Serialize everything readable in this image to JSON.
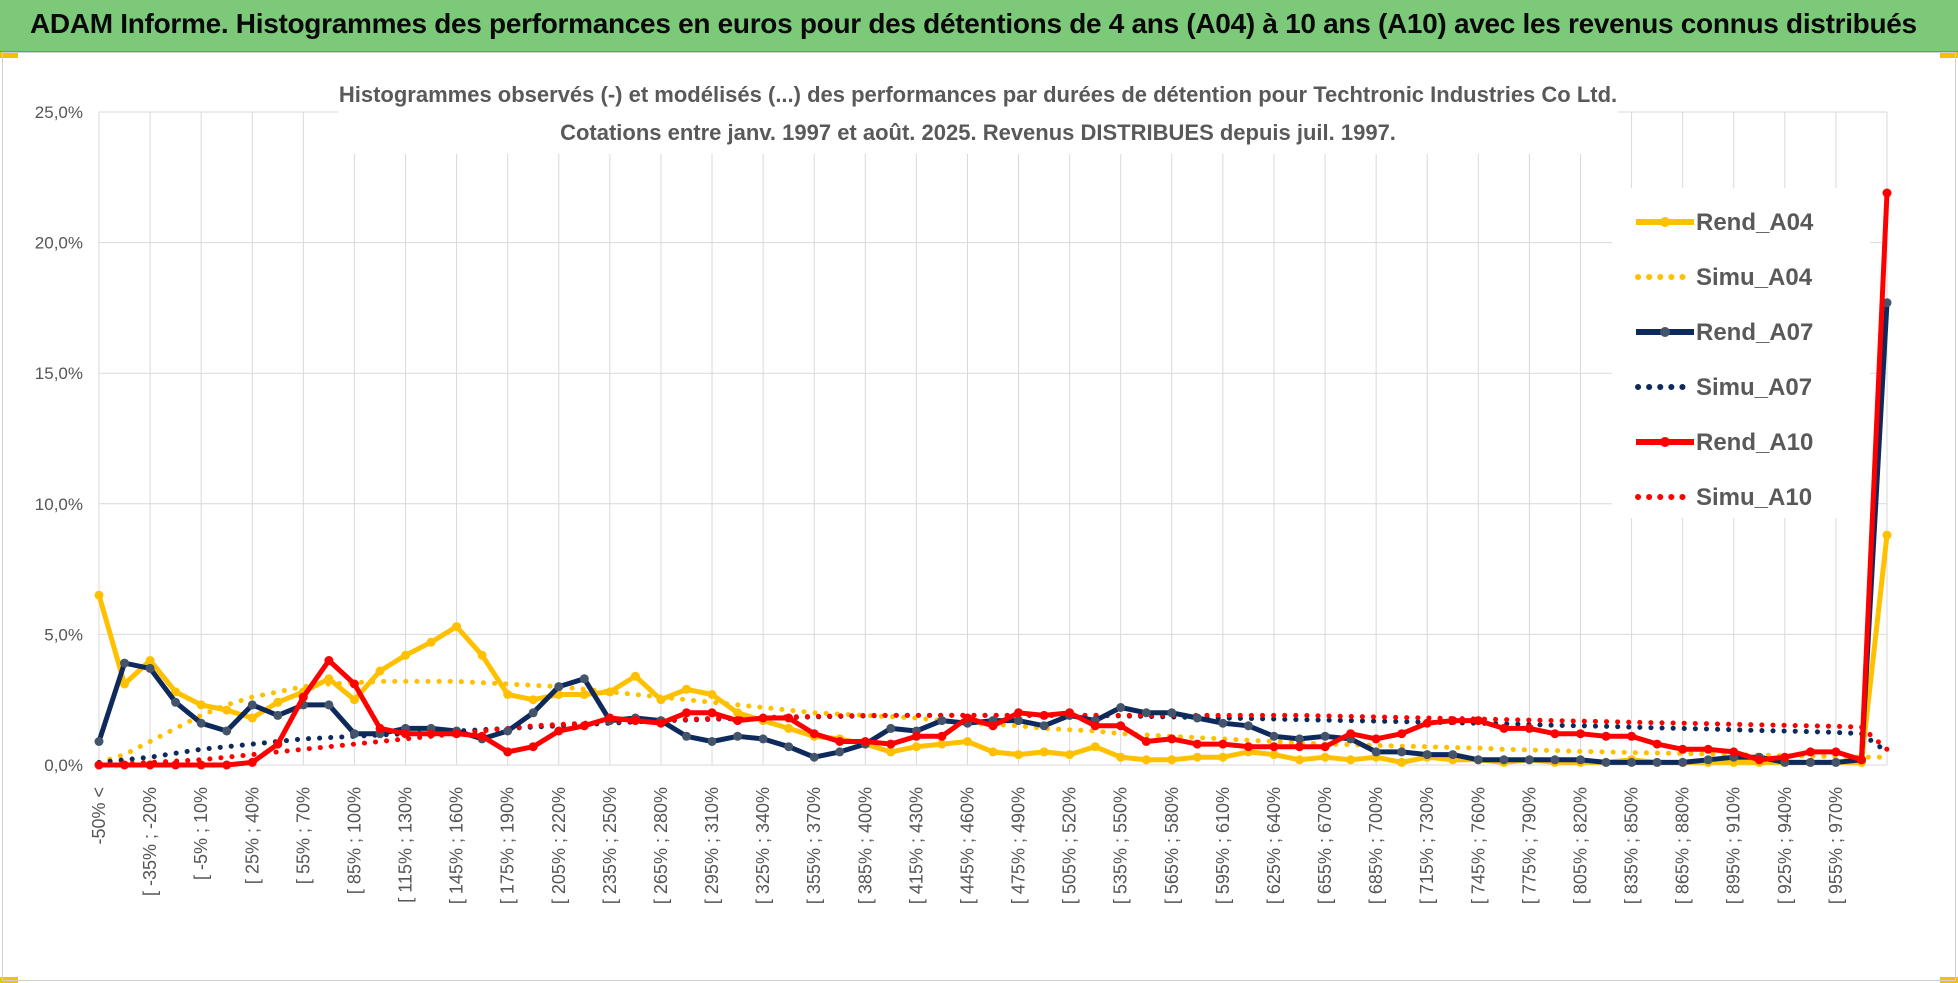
{
  "header": {
    "title": "ADAM Informe. Histogrammes des performances en euros pour des détentions de 4 ans (A04) à 10 ans (A10) avec les revenus connus distribués",
    "banner_color": "#7dc97a"
  },
  "chart_data": {
    "type": "line",
    "title": "Histogrammes observés (-) et modélisés (...) des performances par durées de détention pour Techtronic Industries Co Ltd.",
    "subtitle": "Cotations entre janv. 1997 et août. 2025. Revenus DISTRIBUES depuis juil. 1997.",
    "xlabel": "",
    "ylabel": "",
    "ylim": [
      0,
      25
    ],
    "y_ticks": [
      "0,0%",
      "5,0%",
      "10,0%",
      "15,0%",
      "20,0%",
      "25,0%"
    ],
    "grid": true,
    "legend_position": "right",
    "x_tick_labels": [
      "-50% <",
      "[ -35% ; -20%",
      "[ -5% ; 10%",
      "[ 25% ; 40%",
      "[ 55% ; 70%",
      "[ 85% ; 100%",
      "[ 115% ; 130%",
      "[ 145% ; 160%",
      "[ 175% ; 190%",
      "[ 205% ; 220%",
      "[ 235% ; 250%",
      "[ 265% ; 280%",
      "[ 295% ; 310%",
      "[ 325% ; 340%",
      "[ 355% ; 370%",
      "[ 385% ; 400%",
      "[ 415% ; 430%",
      "[ 445% ; 460%",
      "[ 475% ; 490%",
      "[ 505% ; 520%",
      "[ 535% ; 550%",
      "[ 565% ; 580%",
      "[ 595% ; 610%",
      "[ 625% ; 640%",
      "[ 655% ; 670%",
      "[ 685% ; 700%",
      "[ 715% ; 730%",
      "[ 745% ; 760%",
      "[ 775% ; 790%",
      "[ 805% ; 820%",
      "[ 835% ; 850%",
      "[ 865% ; 880%",
      "[ 895% ; 910%",
      "[ 925% ; 940%",
      "[ 955% ; 970%"
    ],
    "num_points": 71,
    "series": [
      {
        "name": "Rend_A04",
        "style": "solid",
        "color": "#ffc000",
        "values": [
          6.5,
          3.1,
          4.0,
          2.8,
          2.3,
          2.1,
          1.8,
          2.4,
          2.8,
          3.3,
          2.5,
          3.6,
          4.2,
          4.7,
          5.3,
          4.2,
          2.7,
          2.5,
          2.7,
          2.7,
          2.8,
          3.4,
          2.5,
          2.9,
          2.7,
          2.0,
          1.7,
          1.4,
          1.1,
          1.0,
          0.8,
          0.5,
          0.7,
          0.8,
          0.9,
          0.5,
          0.4,
          0.5,
          0.4,
          0.7,
          0.3,
          0.2,
          0.2,
          0.3,
          0.3,
          0.5,
          0.4,
          0.2,
          0.3,
          0.2,
          0.3,
          0.1,
          0.3,
          0.2,
          0.2,
          0.1,
          0.2,
          0.1,
          0.1,
          0.1,
          0.2,
          0.1,
          0.1,
          0.1,
          0.1,
          0.1,
          0.1,
          0.1,
          0.1,
          0.1,
          8.8
        ]
      },
      {
        "name": "Simu_A04",
        "style": "dotted",
        "color": "#ffc000",
        "values": [
          0.1,
          0.4,
          0.9,
          1.4,
          1.9,
          2.3,
          2.6,
          2.8,
          3.0,
          3.1,
          3.15,
          3.2,
          3.2,
          3.2,
          3.2,
          3.15,
          3.1,
          3.05,
          3.0,
          2.9,
          2.8,
          2.7,
          2.6,
          2.5,
          2.4,
          2.3,
          2.2,
          2.1,
          2.0,
          1.95,
          1.9,
          1.85,
          1.8,
          1.7,
          1.6,
          1.55,
          1.5,
          1.4,
          1.35,
          1.3,
          1.2,
          1.15,
          1.1,
          1.05,
          1.0,
          0.95,
          0.9,
          0.85,
          0.8,
          0.78,
          0.75,
          0.72,
          0.7,
          0.67,
          0.65,
          0.6,
          0.58,
          0.55,
          0.52,
          0.5,
          0.48,
          0.46,
          0.44,
          0.42,
          0.4,
          0.38,
          0.36,
          0.34,
          0.32,
          0.3,
          0.3
        ]
      },
      {
        "name": "Rend_A07",
        "style": "solid",
        "color": "#0e2a5c",
        "values": [
          0.9,
          3.9,
          3.7,
          2.4,
          1.6,
          1.3,
          2.3,
          1.9,
          2.3,
          2.3,
          1.2,
          1.2,
          1.4,
          1.4,
          1.3,
          1.0,
          1.3,
          2.0,
          3.0,
          3.3,
          1.7,
          1.8,
          1.7,
          1.1,
          0.9,
          1.1,
          1.0,
          0.7,
          0.3,
          0.5,
          0.8,
          1.4,
          1.3,
          1.7,
          1.6,
          1.7,
          1.7,
          1.5,
          1.9,
          1.7,
          2.2,
          2.0,
          2.0,
          1.8,
          1.6,
          1.5,
          1.1,
          1.0,
          1.1,
          1.0,
          0.5,
          0.5,
          0.4,
          0.4,
          0.2,
          0.2,
          0.2,
          0.2,
          0.2,
          0.1,
          0.1,
          0.1,
          0.1,
          0.2,
          0.3,
          0.3,
          0.1,
          0.1,
          0.1,
          0.2,
          17.7
        ]
      },
      {
        "name": "Simu_A07",
        "style": "dotted",
        "color": "#0e2a5c",
        "values": [
          0.1,
          0.2,
          0.3,
          0.45,
          0.6,
          0.7,
          0.8,
          0.9,
          1.0,
          1.05,
          1.1,
          1.15,
          1.2,
          1.25,
          1.3,
          1.35,
          1.4,
          1.45,
          1.5,
          1.55,
          1.6,
          1.65,
          1.7,
          1.72,
          1.75,
          1.78,
          1.8,
          1.82,
          1.84,
          1.86,
          1.88,
          1.9,
          1.9,
          1.9,
          1.9,
          1.9,
          1.9,
          1.9,
          1.9,
          1.9,
          1.88,
          1.86,
          1.84,
          1.82,
          1.8,
          1.78,
          1.76,
          1.74,
          1.72,
          1.7,
          1.68,
          1.66,
          1.64,
          1.62,
          1.6,
          1.58,
          1.55,
          1.52,
          1.5,
          1.48,
          1.45,
          1.42,
          1.4,
          1.38,
          1.35,
          1.32,
          1.3,
          1.28,
          1.25,
          1.2,
          0.5
        ]
      },
      {
        "name": "Rend_A10",
        "style": "solid",
        "color": "#ff0000",
        "values": [
          0.0,
          0.0,
          0.0,
          0.0,
          0.0,
          0.0,
          0.1,
          0.8,
          2.6,
          4.0,
          3.1,
          1.4,
          1.2,
          1.2,
          1.2,
          1.1,
          0.5,
          0.7,
          1.3,
          1.5,
          1.8,
          1.7,
          1.6,
          2.0,
          2.0,
          1.7,
          1.8,
          1.8,
          1.2,
          0.9,
          0.9,
          0.8,
          1.1,
          1.1,
          1.8,
          1.5,
          2.0,
          1.9,
          2.0,
          1.5,
          1.5,
          0.9,
          1.0,
          0.8,
          0.8,
          0.7,
          0.7,
          0.7,
          0.7,
          1.2,
          1.0,
          1.2,
          1.6,
          1.7,
          1.7,
          1.4,
          1.4,
          1.2,
          1.2,
          1.1,
          1.1,
          0.8,
          0.6,
          0.6,
          0.5,
          0.2,
          0.3,
          0.5,
          0.5,
          0.2,
          21.9
        ]
      },
      {
        "name": "Simu_A10",
        "style": "dotted",
        "color": "#ff0000",
        "values": [
          0.0,
          0.05,
          0.1,
          0.15,
          0.2,
          0.3,
          0.4,
          0.5,
          0.6,
          0.7,
          0.8,
          0.9,
          1.0,
          1.1,
          1.2,
          1.3,
          1.4,
          1.5,
          1.55,
          1.6,
          1.65,
          1.7,
          1.72,
          1.75,
          1.78,
          1.8,
          1.82,
          1.84,
          1.86,
          1.88,
          1.9,
          1.9,
          1.9,
          1.9,
          1.9,
          1.9,
          1.9,
          1.9,
          1.9,
          1.9,
          1.9,
          1.9,
          1.9,
          1.9,
          1.9,
          1.9,
          1.9,
          1.9,
          1.88,
          1.86,
          1.84,
          1.82,
          1.8,
          1.78,
          1.76,
          1.74,
          1.72,
          1.7,
          1.68,
          1.66,
          1.64,
          1.62,
          1.6,
          1.58,
          1.56,
          1.54,
          1.52,
          1.5,
          1.48,
          1.45,
          0.6
        ]
      }
    ]
  }
}
